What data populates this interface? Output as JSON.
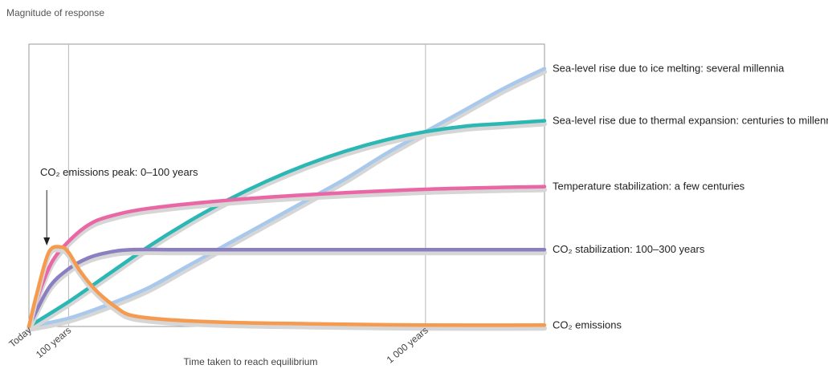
{
  "chart_data": {
    "type": "line",
    "ylabel": "Magnitude of response",
    "xlabel": "Time taken to reach equilibrium",
    "x_ticks": [
      {
        "label": "Today",
        "x": 0
      },
      {
        "label": "100 years",
        "x": 100
      },
      {
        "label": "1 000 years",
        "x": 1000
      }
    ],
    "xlim": [
      0,
      1300
    ],
    "ylim": [
      0,
      1
    ],
    "grid": "vertical lines at 100 and 1 000 years",
    "series": [
      {
        "name": "CO₂ emissions",
        "color": "#f59a4e",
        "points": [
          [
            0,
            0
          ],
          [
            20,
            0.12
          ],
          [
            50,
            0.27
          ],
          [
            80,
            0.29
          ],
          [
            100,
            0.27
          ],
          [
            130,
            0.2
          ],
          [
            170,
            0.13
          ],
          [
            220,
            0.07
          ],
          [
            260,
            0.04
          ],
          [
            350,
            0.025
          ],
          [
            500,
            0.015
          ],
          [
            700,
            0.01
          ],
          [
            1000,
            0.005
          ],
          [
            1300,
            0.005
          ]
        ]
      },
      {
        "name": "CO₂ stabilization: 100–300 years",
        "color": "#8c7fc1",
        "points": [
          [
            0,
            0
          ],
          [
            50,
            0.14
          ],
          [
            100,
            0.21
          ],
          [
            150,
            0.25
          ],
          [
            200,
            0.27
          ],
          [
            260,
            0.28
          ],
          [
            400,
            0.28
          ],
          [
            700,
            0.28
          ],
          [
            1000,
            0.28
          ],
          [
            1300,
            0.28
          ]
        ]
      },
      {
        "name": "Temperature stabilization: a few centuries",
        "color": "#ea67a6",
        "points": [
          [
            0,
            0
          ],
          [
            30,
            0.14
          ],
          [
            60,
            0.24
          ],
          [
            100,
            0.31
          ],
          [
            150,
            0.37
          ],
          [
            200,
            0.4
          ],
          [
            300,
            0.43
          ],
          [
            500,
            0.46
          ],
          [
            700,
            0.48
          ],
          [
            1000,
            0.5
          ],
          [
            1300,
            0.51
          ]
        ]
      },
      {
        "name": "Sea-level rise due to thermal expansion: centuries to millennia",
        "color": "#2bb7b3",
        "points": [
          [
            0,
            0
          ],
          [
            100,
            0.09
          ],
          [
            200,
            0.19
          ],
          [
            300,
            0.29
          ],
          [
            400,
            0.38
          ],
          [
            500,
            0.46
          ],
          [
            600,
            0.53
          ],
          [
            700,
            0.59
          ],
          [
            800,
            0.64
          ],
          [
            900,
            0.68
          ],
          [
            1000,
            0.71
          ],
          [
            1100,
            0.73
          ],
          [
            1200,
            0.74
          ],
          [
            1300,
            0.75
          ]
        ]
      },
      {
        "name": "Sea-level rise due to ice melting: several millennia",
        "color": "#a9c9ec",
        "points": [
          [
            0,
            0
          ],
          [
            100,
            0.03
          ],
          [
            200,
            0.08
          ],
          [
            300,
            0.14
          ],
          [
            400,
            0.22
          ],
          [
            500,
            0.3
          ],
          [
            600,
            0.38
          ],
          [
            700,
            0.46
          ],
          [
            800,
            0.54
          ],
          [
            900,
            0.63
          ],
          [
            1000,
            0.71
          ],
          [
            1100,
            0.79
          ],
          [
            1200,
            0.87
          ],
          [
            1300,
            0.94
          ]
        ]
      }
    ],
    "annotations": [
      {
        "text": "CO₂ emissions peak: 0–100 years",
        "arrow_to_x": 45
      }
    ]
  }
}
